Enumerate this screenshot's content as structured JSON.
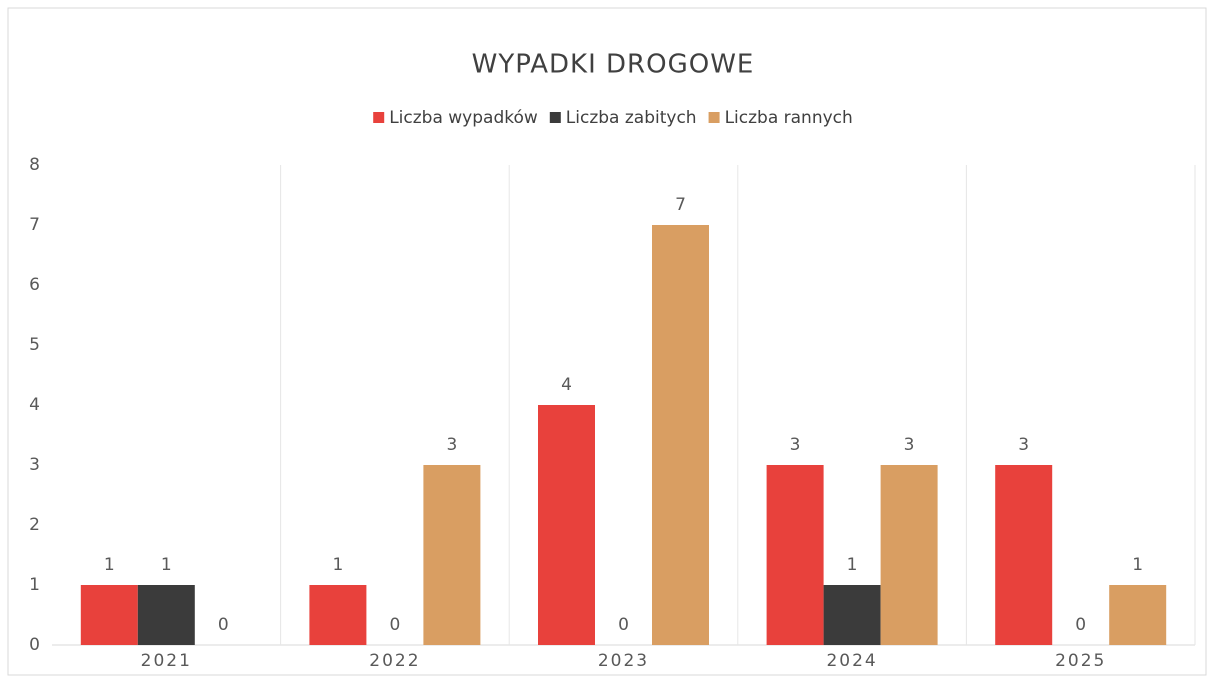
{
  "chart_data": {
    "type": "bar",
    "title": "WYPADKI DROGOWE",
    "categories": [
      "2021",
      "2022",
      "2023",
      "2024",
      "2025"
    ],
    "series": [
      {
        "name": "Liczba wypadków",
        "color": "#e8413c",
        "values": [
          1,
          1,
          4,
          3,
          3
        ]
      },
      {
        "name": "Liczba zabitych",
        "color": "#3b3b3b",
        "values": [
          1,
          0,
          0,
          1,
          0
        ]
      },
      {
        "name": "Liczba rannych",
        "color": "#d99e62",
        "values": [
          0,
          3,
          7,
          3,
          1
        ]
      }
    ],
    "ylim": [
      0,
      8
    ],
    "yticks": [
      0,
      1,
      2,
      3,
      4,
      5,
      6,
      7,
      8
    ],
    "legend": "top"
  }
}
